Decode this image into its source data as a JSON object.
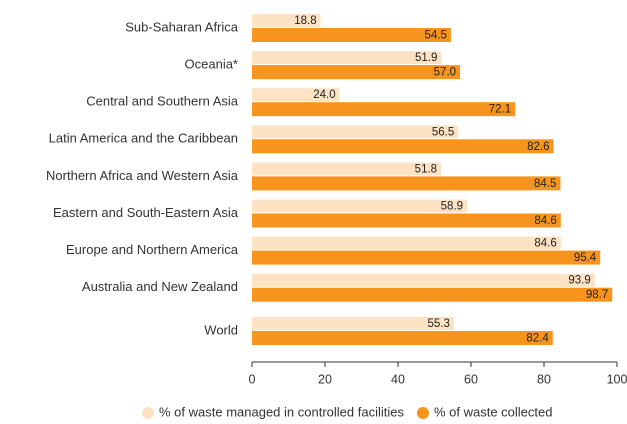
{
  "chart_data": {
    "type": "bar",
    "orientation": "horizontal",
    "categories": [
      "Sub-Saharan Africa",
      "Oceania*",
      "Central and Southern Asia",
      "Latin America and the Caribbean",
      "Northern Africa and Western Asia",
      "Eastern and South-Eastern Asia",
      "Europe and Northern America",
      "Australia and New Zealand",
      "World"
    ],
    "series": [
      {
        "name": "% of waste managed in controlled facilities",
        "color": "#fde3c4",
        "values": [
          18.8,
          51.9,
          24.0,
          56.5,
          51.8,
          58.9,
          84.6,
          93.9,
          55.3
        ],
        "value_labels": [
          "18.8",
          "51.9",
          "24.0",
          "56.5",
          "51.8",
          "58.9",
          "84.6",
          "93.9",
          "55.3"
        ]
      },
      {
        "name": "% of waste collected",
        "color": "#f7941d",
        "values": [
          54.5,
          57.0,
          72.1,
          82.6,
          84.5,
          84.6,
          95.4,
          98.7,
          82.4
        ],
        "value_labels": [
          "54.5",
          "57.0",
          "72.1",
          "82.6",
          "84.5",
          "84.6",
          "95.4",
          "98.7",
          "82.4"
        ]
      }
    ],
    "xlim": [
      0,
      100
    ],
    "xticks": [
      0,
      20,
      40,
      60,
      80,
      100
    ],
    "legend": "bottom"
  }
}
